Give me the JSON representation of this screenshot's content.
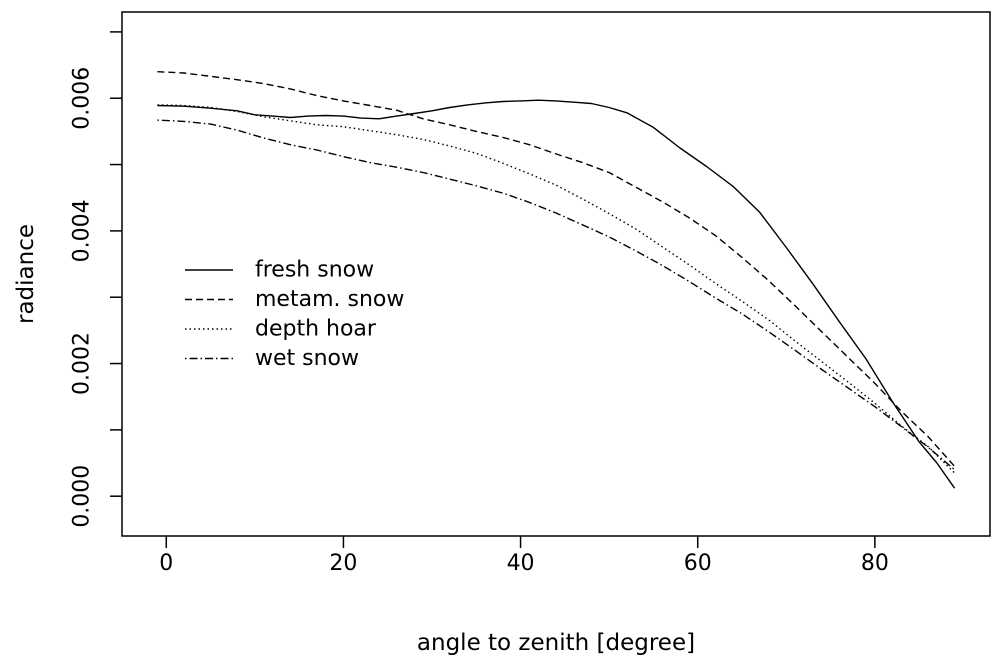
{
  "chart_data": {
    "type": "line",
    "title": "",
    "xlabel": "angle to zenith [degree]",
    "ylabel": "radiance",
    "xlim": [
      -5,
      93
    ],
    "ylim": [
      -0.0006,
      0.0073
    ],
    "x_ticks": [
      0,
      20,
      40,
      60,
      80
    ],
    "y_ticks": [
      0.0,
      0.002,
      0.004,
      0.006
    ],
    "x_tick_labels": [
      "0",
      "20",
      "40",
      "60",
      "80"
    ],
    "y_tick_labels": [
      "0.000",
      "0.002",
      "0.004",
      "0.006"
    ],
    "grid": false,
    "legend_position": "center-left",
    "series": [
      {
        "name": "fresh snow",
        "dash": "solid",
        "x": [
          -1,
          2,
          5,
          8,
          10,
          12,
          14,
          16,
          18,
          20,
          22,
          24,
          26,
          28,
          30,
          32,
          34,
          36,
          38,
          40,
          42,
          44,
          46,
          48,
          50,
          52,
          55,
          58,
          61,
          64,
          67,
          70,
          73,
          76,
          79,
          82,
          85,
          87,
          89
        ],
        "y": [
          0.00589,
          0.00588,
          0.00585,
          0.00581,
          0.00575,
          0.00573,
          0.00571,
          0.00573,
          0.00574,
          0.00573,
          0.0057,
          0.00569,
          0.00573,
          0.00577,
          0.00581,
          0.00586,
          0.0059,
          0.00593,
          0.00595,
          0.00596,
          0.00597,
          0.00596,
          0.00594,
          0.00592,
          0.00586,
          0.00578,
          0.00556,
          0.00525,
          0.00497,
          0.00467,
          0.00428,
          0.00375,
          0.0032,
          0.00263,
          0.00207,
          0.00142,
          0.00082,
          0.0005,
          0.00012
        ]
      },
      {
        "name": "metam. snow",
        "dash": "dashed",
        "x": [
          -1,
          2,
          5,
          8,
          11,
          14,
          17,
          20,
          23,
          26,
          29,
          32,
          35,
          38,
          41,
          44,
          47,
          50,
          53,
          56,
          59,
          62,
          65,
          68,
          71,
          74,
          77,
          80,
          83,
          86,
          89
        ],
        "y": [
          0.0064,
          0.00638,
          0.00633,
          0.00628,
          0.00622,
          0.00614,
          0.00604,
          0.00596,
          0.00589,
          0.00582,
          0.00569,
          0.0056,
          0.0055,
          0.00541,
          0.0053,
          0.00516,
          0.00503,
          0.00488,
          0.00466,
          0.00444,
          0.0042,
          0.00393,
          0.0036,
          0.00325,
          0.00287,
          0.00248,
          0.00209,
          0.0017,
          0.00128,
          0.0009,
          0.00045
        ]
      },
      {
        "name": "depth hoar",
        "dash": "dotted",
        "x": [
          -1,
          2,
          5,
          8,
          11,
          14,
          17,
          20,
          23,
          26,
          29,
          32,
          35,
          38,
          41,
          44,
          47,
          50,
          53,
          56,
          59,
          62,
          65,
          68,
          71,
          74,
          77,
          80,
          83,
          86,
          89
        ],
        "y": [
          0.0059,
          0.00589,
          0.00586,
          0.0058,
          0.00572,
          0.00566,
          0.0056,
          0.00557,
          0.00551,
          0.00545,
          0.00538,
          0.00528,
          0.00517,
          0.00502,
          0.00486,
          0.00469,
          0.00448,
          0.00426,
          0.00403,
          0.00376,
          0.00349,
          0.00321,
          0.00294,
          0.00266,
          0.00234,
          0.00203,
          0.00172,
          0.0014,
          0.00106,
          0.00075,
          0.00035
        ]
      },
      {
        "name": "wet snow",
        "dash": "dotdash",
        "x": [
          -1,
          2,
          5,
          8,
          11,
          14,
          17,
          20,
          23,
          26,
          29,
          32,
          35,
          38,
          41,
          44,
          47,
          50,
          53,
          56,
          59,
          62,
          65,
          68,
          71,
          74,
          77,
          80,
          83,
          86,
          89
        ],
        "y": [
          0.00567,
          0.00565,
          0.00561,
          0.00552,
          0.0054,
          0.0053,
          0.00522,
          0.00512,
          0.00503,
          0.00496,
          0.00488,
          0.00478,
          0.00468,
          0.00457,
          0.00443,
          0.00427,
          0.00409,
          0.00391,
          0.0037,
          0.00348,
          0.00324,
          0.00299,
          0.00275,
          0.00248,
          0.0022,
          0.00191,
          0.00163,
          0.00135,
          0.00105,
          0.00074,
          0.0004
        ]
      }
    ]
  }
}
